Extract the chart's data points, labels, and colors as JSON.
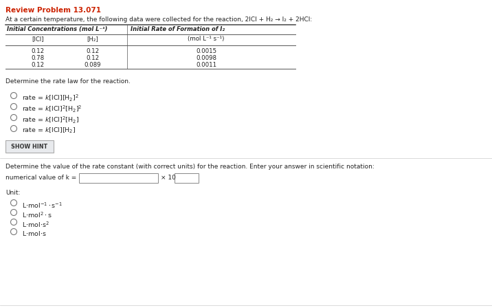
{
  "title": "Review Problem 13.071",
  "subtitle": "At a certain temperature, the following data were collected for the reaction, 2ICl + H₂ → I₂ + 2HCl:",
  "table_header1": "Initial Concentrations (mol L⁻¹)",
  "table_header2": "Initial Rate of Formation of I₂",
  "col1_header": "[ICl]",
  "col2_header": "[H₂]",
  "col3_header": "(mol L⁻¹ s⁻¹)",
  "table_data": [
    [
      "0.12",
      "0.12",
      "0.0015"
    ],
    [
      "0.78",
      "0.12",
      "0.0098"
    ],
    [
      "0.12",
      "0.089",
      "0.0011"
    ]
  ],
  "question1": "Determine the rate law for the reaction.",
  "show_hint_text": "SHOW HINT",
  "question2": "Determine the value of the rate constant (with correct units) for the reaction. Enter your answer in scientific notation:",
  "numerical_label": "numerical value of k =",
  "times10": "× 10",
  "unit_label": "Unit:",
  "bg_color": "#ffffff",
  "title_color": "#cc2200",
  "text_color": "#222222",
  "hint_bg": "#e8eaed",
  "hint_border": "#aaaaaa",
  "table_line_color": "#555555",
  "title_fontsize": 7.5,
  "subtitle_fontsize": 6.5,
  "table_fontsize": 6.2,
  "body_fontsize": 6.5,
  "choice_fontsize": 6.8
}
